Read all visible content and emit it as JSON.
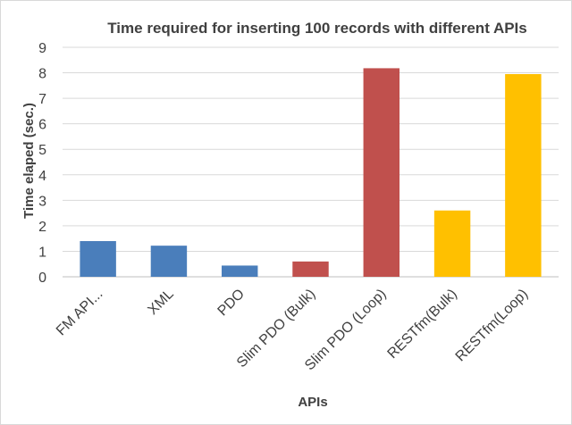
{
  "chart_data": {
    "type": "bar",
    "title": "Time required for inserting 100 records with different APIs",
    "xlabel": "APIs",
    "ylabel": "Time elaped (sec.)",
    "ylim": [
      0,
      9
    ],
    "yticks": [
      0,
      1,
      2,
      3,
      4,
      5,
      6,
      7,
      8,
      9
    ],
    "grid": true,
    "legend": "none",
    "categories": [
      "FM API...",
      "XML",
      "PDO",
      "Slim PDO (Bulk)",
      "Slim PDO (Loop)",
      "RESTfm(Bulk)",
      "RESTfm(Loop)"
    ],
    "values": [
      1.4,
      1.22,
      0.44,
      0.6,
      8.18,
      2.6,
      7.95
    ],
    "bar_colors": [
      "#4a7ebb",
      "#4a7ebb",
      "#4a7ebb",
      "#c0504d",
      "#c0504d",
      "#ffc000",
      "#ffc000"
    ],
    "gridline_color": "#d9d9d9",
    "axis_color": "#bfbfbf"
  }
}
